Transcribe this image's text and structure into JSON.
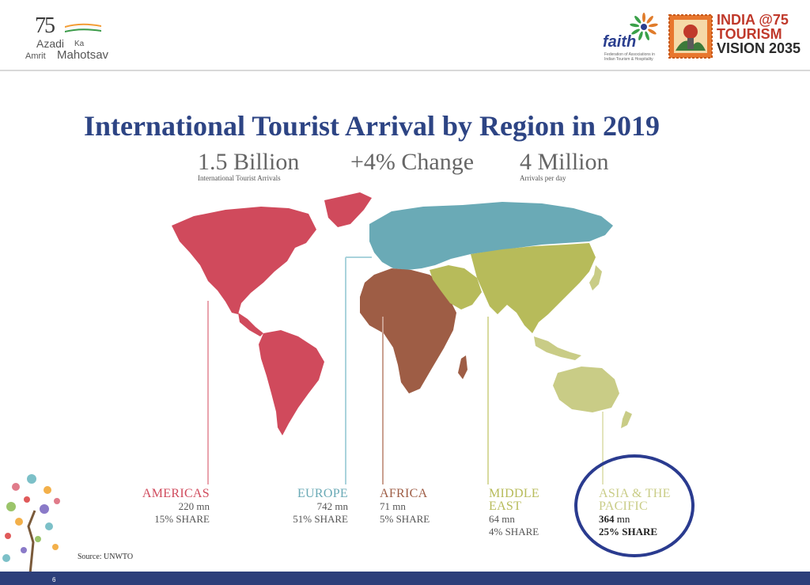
{
  "header": {
    "azadi_logo": {
      "number": "75",
      "line1a": "Azadi",
      "line1b": "Ka",
      "line2a": "Amrit",
      "line2b": "Mahotsav"
    },
    "faith_logo": {
      "word": "faith",
      "subtitle": "Federation of Associations in Indian Tourism & Hospitality"
    },
    "vision_logo": {
      "line1": "INDIA @75",
      "line2": "TOURISM",
      "line3": "VISION 2035"
    }
  },
  "title": "International Tourist Arrival by Region in 2019",
  "stats": [
    {
      "value": "1.5 Billion",
      "label": "International Tourist Arrivals"
    },
    {
      "value": "+4% Change",
      "label": ""
    },
    {
      "value": "4 Million",
      "label": "Arrivals per day"
    }
  ],
  "regions": {
    "americas": {
      "name": "AMERICAS",
      "arrivals": "220 mn",
      "share": "15% SHARE",
      "color": "#d04a5c"
    },
    "europe": {
      "name": "EUROPE",
      "arrivals": "742 mn",
      "share": "51% SHARE",
      "color": "#6aaab6"
    },
    "africa": {
      "name": "AFRICA",
      "arrivals": "71 mn",
      "share": "5% SHARE",
      "color": "#9e5d45"
    },
    "middle_east": {
      "name_line1": "MIDDLE",
      "name_line2": "EAST",
      "arrivals": "64 mn",
      "share": "4% SHARE",
      "color": "#b7bb5a"
    },
    "asia_pacific": {
      "name_line1": "ASIA & THE",
      "name_line2": "PACIFIC",
      "arrivals_num": "364",
      "arrivals_unit": " mn",
      "share": "25% SHARE",
      "color": "#c9cc86"
    }
  },
  "source": "Source: UNWTO",
  "page_number": "6",
  "colors": {
    "title": "#2d4484",
    "footer_bar": "#2d3f7a",
    "highlight_ring": "#2a3b8f"
  }
}
